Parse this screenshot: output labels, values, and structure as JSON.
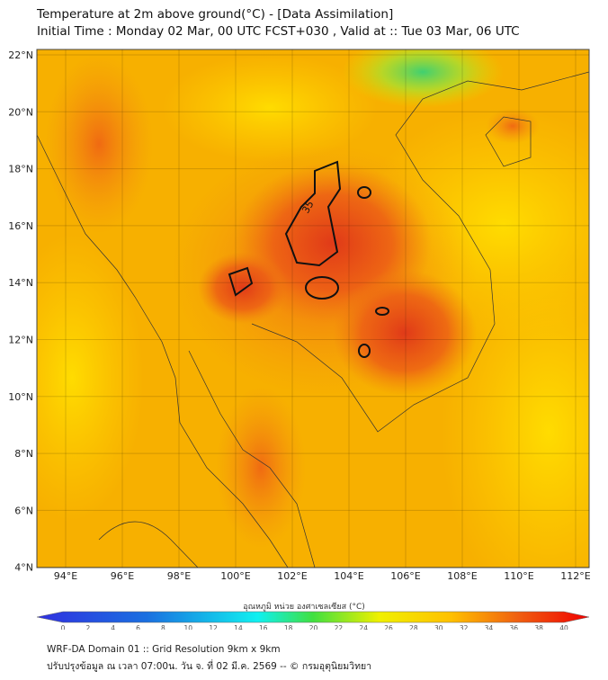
{
  "title": "Temperature at 2m above ground(°C) - [Data Assimilation]",
  "subtitle": "Initial Time : Monday 02 Mar, 00 UTC FCST+030 , Valid at :: Tue 03 Mar, 06 UTC",
  "map": {
    "lat_labels": [
      "22°N",
      "20°N",
      "18°N",
      "16°N",
      "14°N",
      "12°N",
      "10°N",
      "8°N",
      "6°N",
      "4°N"
    ],
    "lon_labels": [
      "94°E",
      "96°E",
      "98°E",
      "100°E",
      "102°E",
      "104°E",
      "106°E",
      "108°E",
      "110°E",
      "112°E"
    ],
    "contour_label": "35",
    "colors": {
      "hot": "#e8401a",
      "warm": "#f07a10",
      "mild": "#f7b400",
      "sea": "#ffd200",
      "cool": "#5ad25a"
    }
  },
  "colorbar": {
    "title": "อุณหภูมิ หน่วย องศาเซลเซียส (°C)",
    "ticks": [
      "0",
      "2",
      "4",
      "6",
      "8",
      "10",
      "12",
      "14",
      "16",
      "18",
      "20",
      "22",
      "24",
      "26",
      "28",
      "30",
      "32",
      "34",
      "36",
      "38",
      "40"
    ]
  },
  "footer": {
    "line1": "WRF-DA Domain 01 :: Grid Resolution 9km x 9km",
    "line2": "ปรับปรุงข้อมูล ณ เวลา 07:00น. วัน จ. ที่ 02 มี.ค. 2569 -- © กรมอุตุนิยมวิทยา"
  }
}
